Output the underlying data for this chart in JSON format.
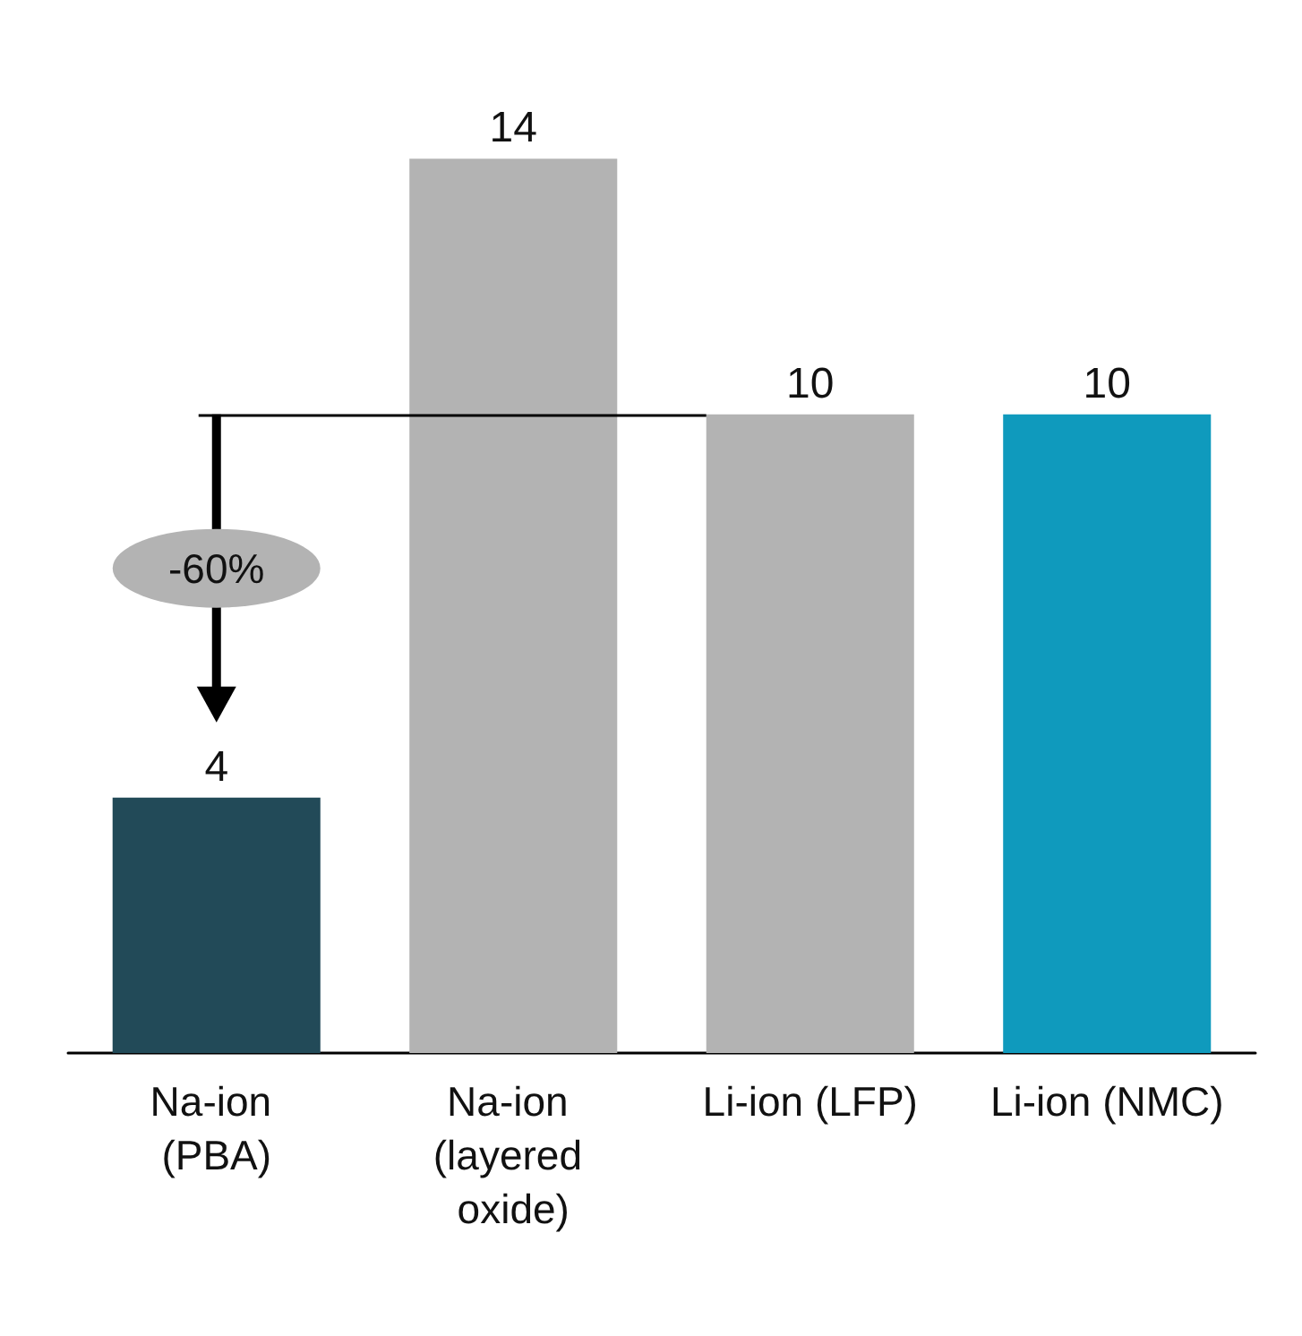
{
  "chart_data": {
    "type": "bar",
    "categories": [
      "Na-ion (PBA)",
      "Na-ion (layered oxide)",
      "Li-ion (LFP)",
      "Li-ion (NMC)"
    ],
    "values": [
      4,
      14,
      10,
      10
    ],
    "colors": [
      "#224a58",
      "#b3b3b3",
      "#b3b3b3",
      "#0f9abd"
    ],
    "data_labels": true,
    "ref_lines": [
      {
        "axis": "y",
        "value": 10,
        "color": "#000000"
      }
    ],
    "annotations": [
      "-60%"
    ]
  }
}
